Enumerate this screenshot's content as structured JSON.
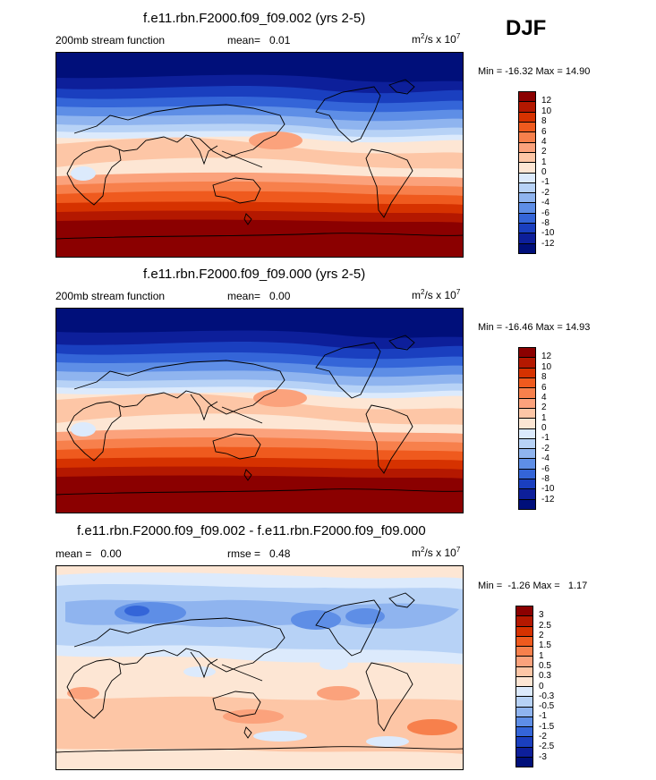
{
  "season": "DJF",
  "panels": [
    {
      "title": "f.e11.rbn.F2000.f09_f09.002 (yrs 2-5)",
      "left_label": "200mb stream function",
      "mean_label": "mean=",
      "mean_value": "0.01",
      "units_base": "m",
      "units_sup": "2",
      "units_mid": "/s x 10",
      "units_exp": "7",
      "minmax": "Min = -16.32 Max =  14.90",
      "colorbar": {
        "labels": [
          "12",
          "10",
          "8",
          "6",
          "4",
          "2",
          "1",
          "0",
          "-1",
          "-2",
          "-4",
          "-6",
          "-8",
          "-10",
          "-12"
        ],
        "colors": [
          "#8b0000",
          "#b41800",
          "#d63200",
          "#ef5a1e",
          "#f7804c",
          "#fba27c",
          "#fdc6a6",
          "#fde6d4",
          "#dceafc",
          "#b7d2f6",
          "#8fb4ef",
          "#5e8ee6",
          "#3465d8",
          "#1a3fbf",
          "#0d1f9a",
          "#000f7a"
        ]
      }
    },
    {
      "title": "f.e11.rbn.F2000.f09_f09.000 (yrs 2-5)",
      "left_label": "200mb stream function",
      "mean_label": "mean=",
      "mean_value": "0.00",
      "units_base": "m",
      "units_sup": "2",
      "units_mid": "/s x 10",
      "units_exp": "7",
      "minmax": "Min = -16.46 Max =  14.93",
      "colorbar": {
        "labels": [
          "12",
          "10",
          "8",
          "6",
          "4",
          "2",
          "1",
          "0",
          "-1",
          "-2",
          "-4",
          "-6",
          "-8",
          "-10",
          "-12"
        ],
        "colors": [
          "#8b0000",
          "#b41800",
          "#d63200",
          "#ef5a1e",
          "#f7804c",
          "#fba27c",
          "#fdc6a6",
          "#fde6d4",
          "#dceafc",
          "#b7d2f6",
          "#8fb4ef",
          "#5e8ee6",
          "#3465d8",
          "#1a3fbf",
          "#0d1f9a",
          "#000f7a"
        ]
      }
    },
    {
      "title": "f.e11.rbn.F2000.f09_f09.002 - f.e11.rbn.F2000.f09_f09.000",
      "left_label": "mean =   0.00",
      "mean_label": "rmse =",
      "mean_value": "0.48",
      "units_base": "m",
      "units_sup": "2",
      "units_mid": "/s x 10",
      "units_exp": "7",
      "minmax": "Min =  -1.26 Max =   1.17",
      "colorbar": {
        "labels": [
          "3",
          "2.5",
          "2",
          "1.5",
          "1",
          "0.5",
          "0.3",
          "0",
          "-0.3",
          "-0.5",
          "-1",
          "-1.5",
          "-2",
          "-2.5",
          "-3"
        ],
        "colors": [
          "#8b0000",
          "#b41800",
          "#d63200",
          "#ef5a1e",
          "#f7804c",
          "#fba27c",
          "#fdc6a6",
          "#fde6d4",
          "#dceafc",
          "#b7d2f6",
          "#8fb4ef",
          "#5e8ee6",
          "#3465d8",
          "#1a3fbf",
          "#0d1f9a",
          "#000f7a"
        ]
      }
    }
  ]
}
